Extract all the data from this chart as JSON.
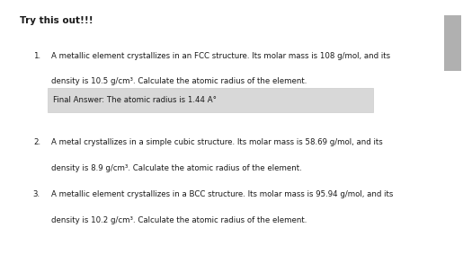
{
  "title": "Try this out!!!",
  "background_color": "#ffffff",
  "answer_box_color": "#d8d8d8",
  "items": [
    {
      "number": "1.",
      "line1": "A metallic element crystallizes in an FCC structure. Its molar mass is 108 g/mol, and its",
      "line2": "density is 10.5 g/cm³. Calculate the atomic radius of the element.",
      "answer": "Final Answer: The atomic radius is 1.44 A°"
    },
    {
      "number": "2.",
      "line1": "A metal crystallizes in a simple cubic structure. Its molar mass is 58.69 g/mol, and its",
      "line2": "density is 8.9 g/cm³. Calculate the atomic radius of the element.",
      "answer": null
    },
    {
      "number": "3.",
      "line1": "A metallic element crystallizes in a BCC structure. Its molar mass is 95.94 g/mol, and its",
      "line2": "density is 10.2 g/cm³. Calculate the atomic radius of the element.",
      "answer": null
    }
  ],
  "font_size_title": 7.5,
  "font_size_body": 6.2,
  "font_size_answer": 6.2,
  "text_color": "#1a1a1a",
  "scrollbar_track_color": "#e8e8e8",
  "scrollbar_thumb_color": "#b0b0b0",
  "fig_width": 5.15,
  "fig_height": 2.83,
  "dpi": 100
}
